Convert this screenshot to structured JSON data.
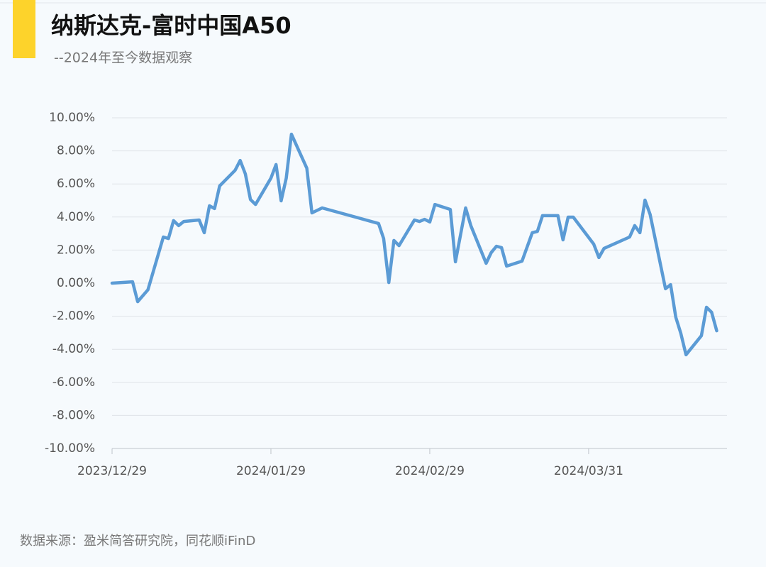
{
  "chart_data": {
    "type": "line",
    "title": "纳斯达克-富时中国A50",
    "subtitle": "--2024年至今数据观察",
    "source": "数据来源：盈米简答研究院，同花顺iFinD",
    "color": "#5b9bd5",
    "x": [
      "2023/12/29",
      "2024/01/02",
      "2024/01/03",
      "2024/01/05",
      "2024/01/08",
      "2024/01/09",
      "2024/01/10",
      "2024/01/11",
      "2024/01/12",
      "2024/01/15",
      "2024/01/16",
      "2024/01/17",
      "2024/01/18",
      "2024/01/19",
      "2024/01/22",
      "2024/01/23",
      "2024/01/24",
      "2024/01/25",
      "2024/01/26",
      "2024/01/29",
      "2024/01/30",
      "2024/01/31",
      "2024/02/01",
      "2024/02/02",
      "2024/02/05",
      "2024/02/06",
      "2024/02/08",
      "2024/02/19",
      "2024/02/20",
      "2024/02/21",
      "2024/02/22",
      "2024/02/23",
      "2024/02/26",
      "2024/02/27",
      "2024/02/28",
      "2024/02/29",
      "2024/03/01",
      "2024/03/04",
      "2024/03/05",
      "2024/03/07",
      "2024/03/08",
      "2024/03/11",
      "2024/03/12",
      "2024/03/13",
      "2024/03/14",
      "2024/03/15",
      "2024/03/18",
      "2024/03/20",
      "2024/03/21",
      "2024/03/22",
      "2024/03/25",
      "2024/03/26",
      "2024/03/27",
      "2024/03/28",
      "2024/04/01",
      "2024/04/02",
      "2024/04/03",
      "2024/04/08",
      "2024/04/09",
      "2024/04/10",
      "2024/04/11",
      "2024/04/12",
      "2024/04/15",
      "2024/04/16",
      "2024/04/17",
      "2024/04/18",
      "2024/04/19",
      "2024/04/22",
      "2024/04/23",
      "2024/04/24",
      "2024/04/25"
    ],
    "values": [
      0.0,
      0.08,
      -1.12,
      -0.4,
      2.79,
      2.7,
      3.78,
      3.48,
      3.73,
      3.82,
      3.05,
      4.68,
      4.51,
      5.88,
      6.82,
      7.42,
      6.61,
      5.06,
      4.76,
      6.35,
      7.17,
      4.98,
      6.35,
      9.01,
      6.95,
      4.25,
      4.55,
      3.61,
      2.7,
      0.04,
      2.58,
      2.27,
      3.82,
      3.73,
      3.86,
      3.7,
      4.76,
      4.46,
      1.29,
      4.55,
      3.48,
      1.2,
      1.85,
      2.23,
      2.15,
      1.03,
      1.33,
      3.05,
      3.13,
      4.08,
      4.08,
      2.62,
      3.99,
      3.99,
      2.36,
      1.55,
      2.1,
      2.79,
      3.48,
      3.05,
      5.02,
      4.16,
      -0.34,
      -0.09,
      -2.06,
      -3.05,
      -4.33,
      -3.18,
      -1.46,
      -1.76,
      -2.88
    ],
    "xlim": [
      "2023/12/29",
      "2024/04/27"
    ],
    "xticks": [
      "2023/12/29",
      "2024/01/29",
      "2024/02/29",
      "2024/03/31"
    ],
    "ylim": [
      -10,
      10
    ],
    "yticks": [
      {
        "value": -10,
        "label": "-10.00%"
      },
      {
        "value": -8,
        "label": "-8.00%"
      },
      {
        "value": -6,
        "label": "-6.00%"
      },
      {
        "value": -4,
        "label": "-4.00%"
      },
      {
        "value": -2,
        "label": "-2.00%"
      },
      {
        "value": 0,
        "label": "0.00%"
      },
      {
        "value": 2,
        "label": "2.00%"
      },
      {
        "value": 4,
        "label": "4.00%"
      },
      {
        "value": 6,
        "label": "6.00%"
      },
      {
        "value": 8,
        "label": "8.00%"
      },
      {
        "value": 10,
        "label": "10.00%"
      }
    ],
    "grid": true
  }
}
